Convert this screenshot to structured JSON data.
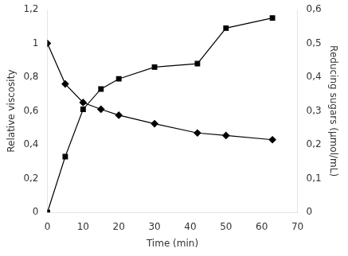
{
  "chart_data": {
    "type": "line",
    "xlabel": "Time (min)",
    "ylabel": "Relative viscosity",
    "y2label": "Reducing sugars (μmol/mL)",
    "x": [
      0,
      5,
      10,
      15,
      20,
      30,
      42,
      50,
      63
    ],
    "series": [
      {
        "color": "black",
        "marker": "diamond",
        "axis": "y",
        "values": [
          1.0,
          0.76,
          0.65,
          0.61,
          0.575,
          0.525,
          0.47,
          0.455,
          0.43
        ]
      },
      {
        "color": "black",
        "marker": "square",
        "axis": "y2",
        "values": [
          0.0,
          0.165,
          0.305,
          0.365,
          0.395,
          0.43,
          0.44,
          0.545,
          0.575
        ]
      }
    ],
    "xlim": [
      0,
      70
    ],
    "xticks": [
      0,
      10,
      20,
      30,
      40,
      50,
      60,
      70
    ],
    "ylim": [
      0,
      1.2
    ],
    "yticks": [
      0,
      {
        "value": 0.2,
        "label": "0,2"
      },
      {
        "value": 0.4,
        "label": "0,4"
      },
      {
        "value": 0.6,
        "label": "0,6"
      },
      {
        "value": 0.8,
        "label": "0,8"
      },
      1,
      {
        "value": 1.2,
        "label": "1,2"
      }
    ],
    "y2lim": [
      0,
      0.6
    ],
    "y2ticks": [
      0,
      {
        "value": 0.1,
        "label": "0,1"
      },
      {
        "value": 0.2,
        "label": "0,2"
      },
      {
        "value": 0.3,
        "label": "0,3"
      },
      {
        "value": 0.4,
        "label": "0,4"
      },
      {
        "value": 0.5,
        "label": "0,5"
      },
      {
        "value": 0.6,
        "label": "0,6"
      }
    ],
    "grid": false
  }
}
